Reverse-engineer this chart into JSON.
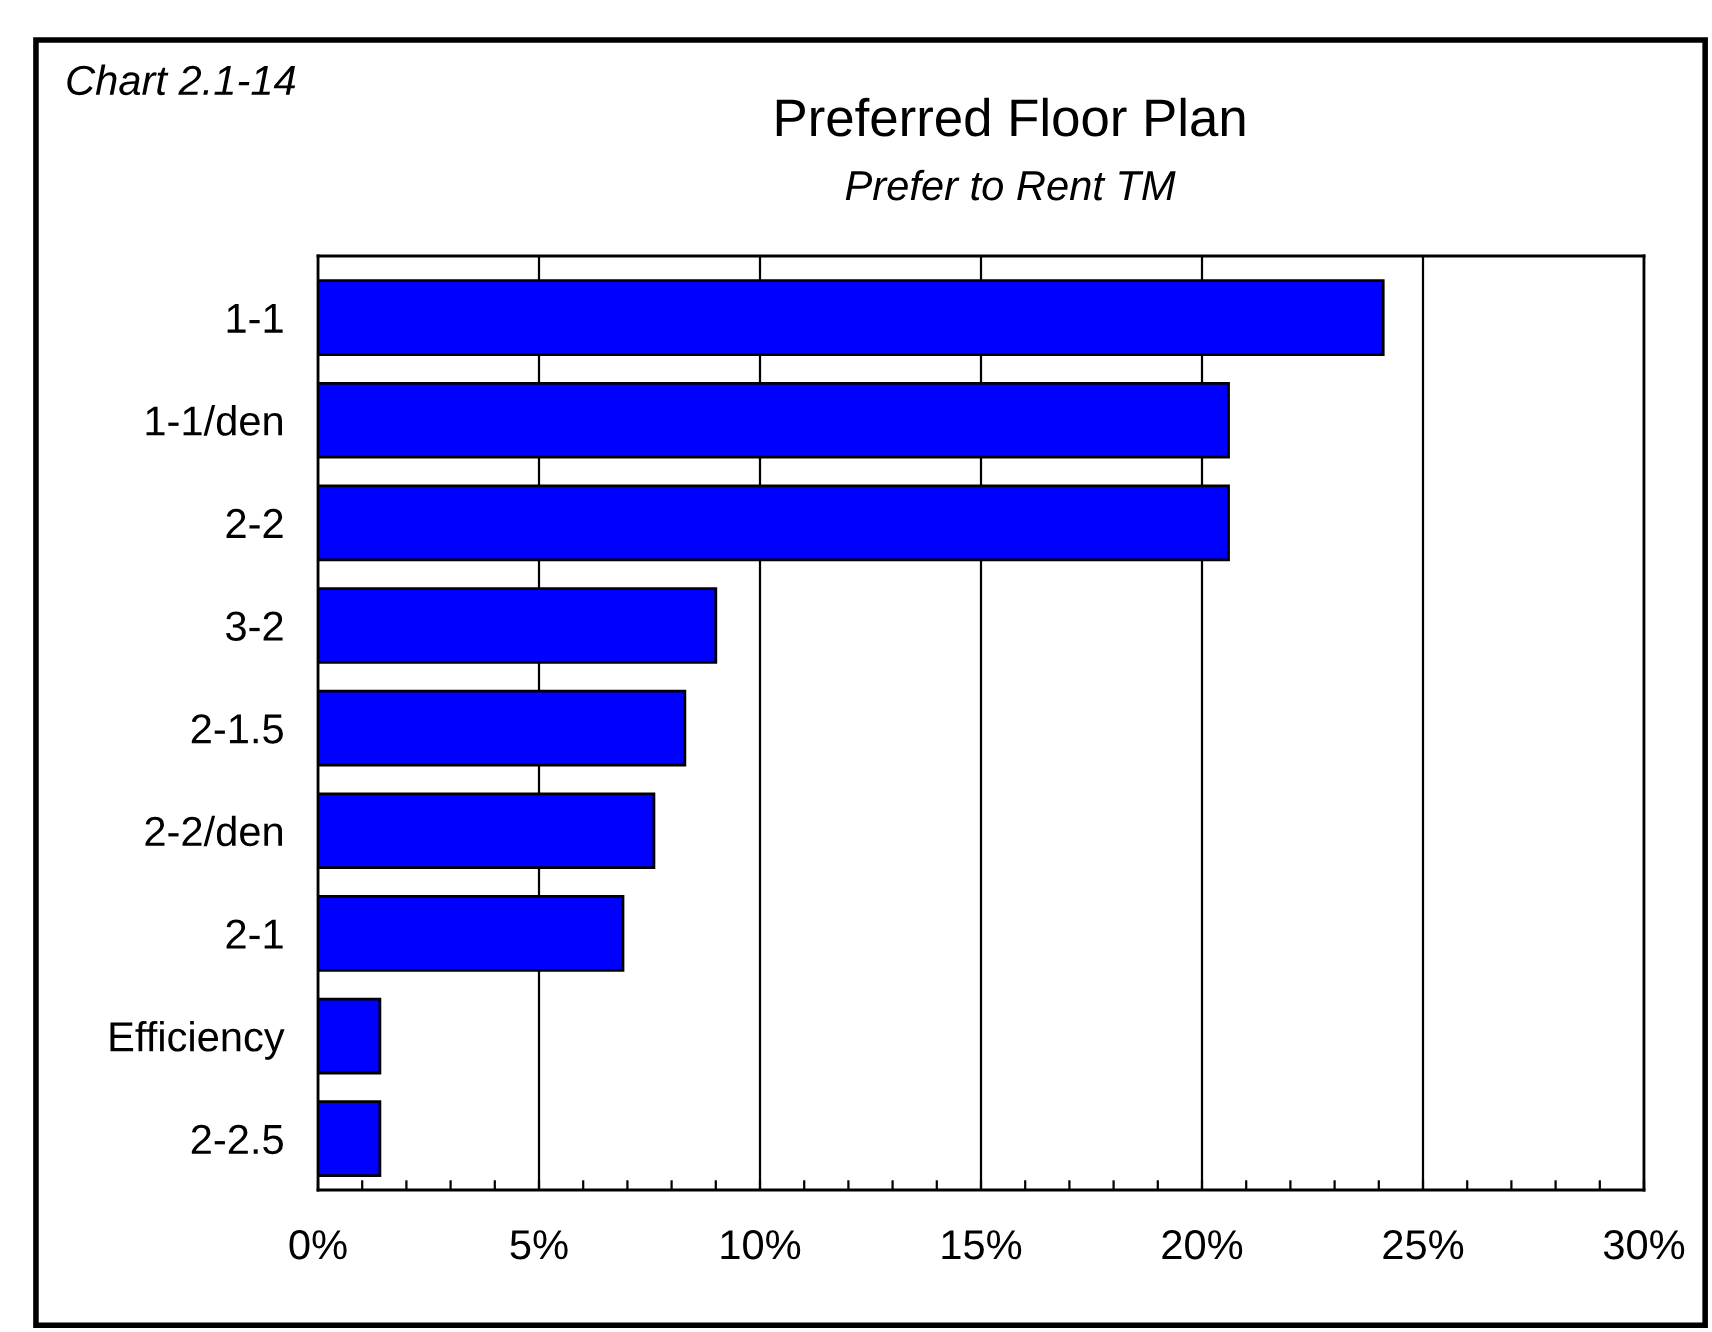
{
  "chart_data": {
    "type": "bar",
    "orientation": "horizontal",
    "title": "Preferred Floor Plan",
    "subtitle": "Prefer to Rent TM",
    "annotations": [
      "Chart 2.1-14"
    ],
    "categories": [
      "1-1",
      "1-1/den",
      "2-2",
      "3-2",
      "2-1.5",
      "2-2/den",
      "2-1",
      "Efficiency",
      "2-2.5"
    ],
    "values": [
      24.1,
      20.6,
      20.6,
      9.0,
      8.3,
      7.6,
      6.9,
      1.4,
      1.4
    ],
    "color": "#0000ff",
    "xlim": [
      0,
      30
    ],
    "xticks": [
      {
        "value": 0,
        "label": "0%"
      },
      {
        "value": 1,
        "label": null
      },
      {
        "value": 2,
        "label": null
      },
      {
        "value": 3,
        "label": null
      },
      {
        "value": 4,
        "label": null
      },
      {
        "value": 5,
        "label": "5%"
      },
      {
        "value": 6,
        "label": null
      },
      {
        "value": 7,
        "label": null
      },
      {
        "value": 8,
        "label": null
      },
      {
        "value": 9,
        "label": null
      },
      {
        "value": 10,
        "label": "10%"
      },
      {
        "value": 11,
        "label": null
      },
      {
        "value": 12,
        "label": null
      },
      {
        "value": 13,
        "label": null
      },
      {
        "value": 14,
        "label": null
      },
      {
        "value": 15,
        "label": "15%"
      },
      {
        "value": 16,
        "label": null
      },
      {
        "value": 17,
        "label": null
      },
      {
        "value": 18,
        "label": null
      },
      {
        "value": 19,
        "label": null
      },
      {
        "value": 20,
        "label": "20%"
      },
      {
        "value": 21,
        "label": null
      },
      {
        "value": 22,
        "label": null
      },
      {
        "value": 23,
        "label": null
      },
      {
        "value": 24,
        "label": null
      },
      {
        "value": 25,
        "label": "25%"
      },
      {
        "value": 26,
        "label": null
      },
      {
        "value": 27,
        "label": null
      },
      {
        "value": 28,
        "label": null
      },
      {
        "value": 29,
        "label": null
      },
      {
        "value": 30,
        "label": "30%"
      }
    ],
    "grid": "x"
  }
}
